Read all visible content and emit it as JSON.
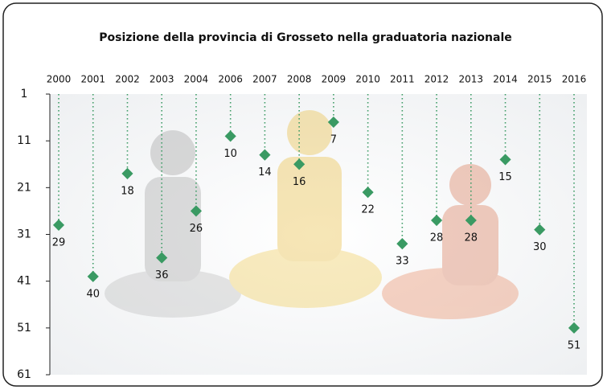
{
  "chart_data": {
    "type": "dot-drop",
    "title": "Posizione della provincia di Grosseto nella graduatoria nazionale",
    "categories": [
      "2000",
      "2001",
      "2002",
      "2003",
      "2004",
      "2006",
      "2007",
      "2008",
      "2009",
      "2010",
      "2011",
      "2012",
      "2013",
      "2014",
      "2015",
      "2016"
    ],
    "values": [
      29,
      40,
      18,
      36,
      26,
      10,
      14,
      16,
      7,
      22,
      33,
      28,
      28,
      15,
      30,
      51
    ],
    "color": "#3a9a63",
    "ylim": [
      1,
      61
    ],
    "yticks": [
      1,
      11,
      21,
      31,
      41,
      51,
      61
    ],
    "y_inverted": true
  }
}
